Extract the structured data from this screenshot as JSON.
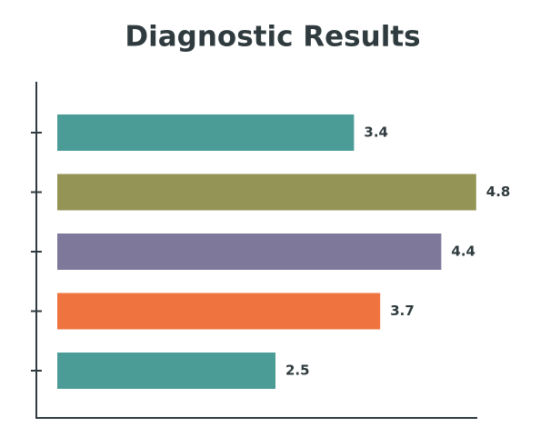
{
  "chart_data": {
    "type": "barh",
    "title": "Diagnostic Results",
    "categories": [
      null,
      null,
      null,
      null,
      null
    ],
    "values": [
      3.4,
      4.8,
      4.4,
      3.7,
      2.5
    ],
    "colors": [
      "#4b9c97",
      "#949456",
      "#7e789b",
      "#ef733f",
      "#4b9c97"
    ],
    "xlim": [
      0,
      5
    ]
  }
}
